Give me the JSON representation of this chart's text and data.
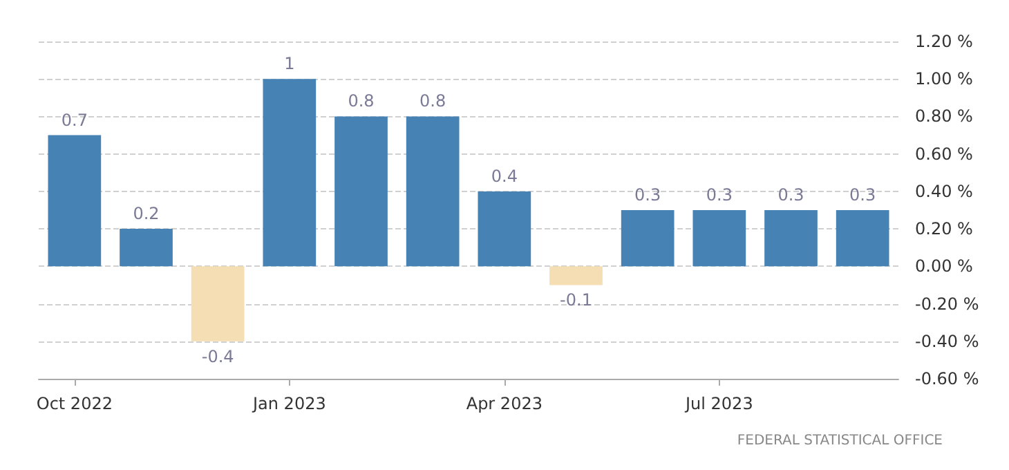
{
  "chart_data": {
    "type": "bar",
    "categories": [
      "Oct 2022",
      null,
      null,
      "Jan 2023",
      null,
      null,
      "Apr 2023",
      null,
      null,
      "Jul 2023",
      null,
      null
    ],
    "values": [
      0.7,
      0.2,
      -0.4,
      1,
      0.8,
      0.8,
      0.4,
      -0.1,
      0.3,
      0.3,
      0.3,
      0.3
    ],
    "colors": [
      "#4682b4",
      "#4682b4",
      "#f5deb3",
      "#4682b4",
      "#4682b4",
      "#4682b4",
      "#4682b4",
      "#f5deb3",
      "#4682b4",
      "#4682b4",
      "#4682b4",
      "#4682b4"
    ],
    "ylim": [
      -0.6,
      1.2
    ],
    "yticks": [
      {
        "value": -0.6,
        "label": "-0.60 %"
      },
      {
        "value": -0.4,
        "label": "-0.40 %"
      },
      {
        "value": -0.2,
        "label": "-0.20 %"
      },
      {
        "value": 0,
        "label": "0.00 %"
      },
      {
        "value": 0.2,
        "label": "0.20 %"
      },
      {
        "value": 0.4,
        "label": "0.40 %"
      },
      {
        "value": 0.6,
        "label": "0.60 %"
      },
      {
        "value": 0.8,
        "label": "0.80 %"
      },
      {
        "value": 1,
        "label": "1.00 %"
      },
      {
        "value": 1.2,
        "label": "1.20 %"
      }
    ],
    "grid": "y",
    "data_labels": true,
    "annotations": [
      "FEDERAL STATISTICAL OFFICE"
    ]
  }
}
